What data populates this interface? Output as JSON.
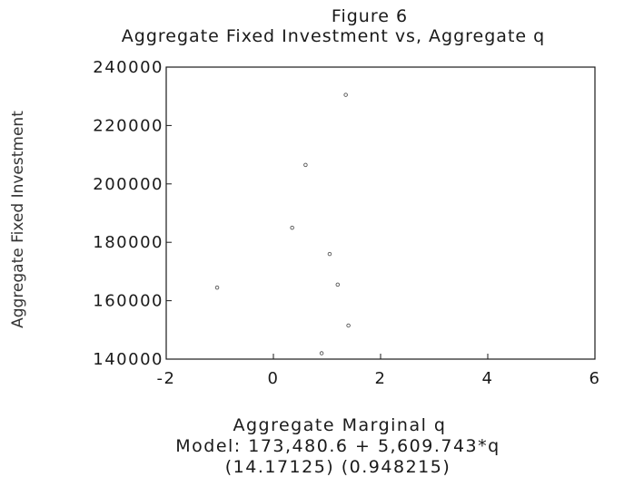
{
  "figure": {
    "label": "Figure 6",
    "subtitle": "Aggregate Fixed Investment vs, Aggregate q"
  },
  "model": {
    "equation": "Model: 173,480.6 + 5,609.743*q",
    "std_errors": "(14.17125)   (0.948215)"
  },
  "colors": {
    "ink": "#1a1a1a",
    "point": "#555555",
    "background": "#ffffff"
  },
  "chart_data": {
    "type": "scatter",
    "title": "Aggregate Fixed Investment vs, Aggregate q",
    "xlabel": "Aggregate Marginal q",
    "ylabel": "Aggregate Fixed Investment",
    "xlim": [
      -2,
      6
    ],
    "ylim": [
      140000,
      240000
    ],
    "xticks": [
      -2,
      0,
      2,
      4,
      6
    ],
    "yticks": [
      140000,
      160000,
      180000,
      200000,
      220000,
      240000
    ],
    "xtick_labels": [
      "-2",
      "0",
      "2",
      "4",
      "6"
    ],
    "ytick_labels": [
      "140000",
      "160000",
      "180000",
      "200000",
      "220000",
      "240000"
    ],
    "grid": false,
    "legend": "none",
    "points": [
      {
        "x": 1.35,
        "y": 230500
      },
      {
        "x": 0.6,
        "y": 206500
      },
      {
        "x": 0.35,
        "y": 185000
      },
      {
        "x": 1.05,
        "y": 176000
      },
      {
        "x": -1.05,
        "y": 164500
      },
      {
        "x": 1.2,
        "y": 165500
      },
      {
        "x": 1.4,
        "y": 151500
      },
      {
        "x": 0.9,
        "y": 142000
      }
    ]
  }
}
